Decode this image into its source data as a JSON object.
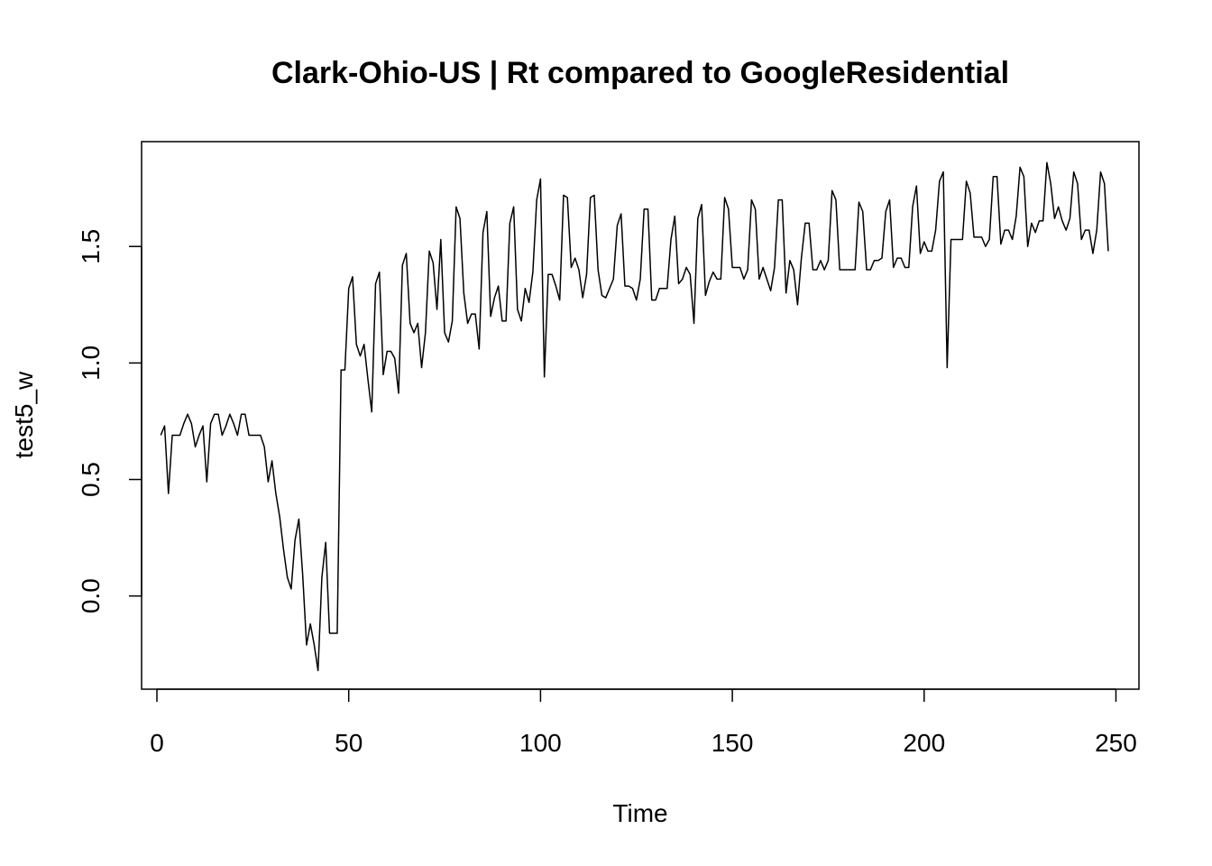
{
  "chart_data": {
    "type": "line",
    "title": "Clark-Ohio-US | Rt compared to GoogleResidential",
    "xlabel": "Time",
    "ylabel": "test5_w",
    "xlim": [
      -4,
      256
    ],
    "ylim": [
      -0.4,
      1.95
    ],
    "xticks": [
      0,
      50,
      100,
      150,
      200,
      250
    ],
    "yticks": [
      0.0,
      0.5,
      1.0,
      1.5
    ],
    "xtick_labels": [
      "0",
      "50",
      "100",
      "150",
      "200",
      "250"
    ],
    "ytick_labels": [
      "0.0",
      "0.5",
      "1.0",
      "1.5"
    ],
    "grid": false,
    "legend": "none",
    "line_color": "#000000",
    "series": [
      {
        "x": [
          1,
          2,
          3,
          4,
          5,
          6,
          7,
          8,
          9,
          10,
          11,
          12,
          13,
          14,
          15,
          16,
          17,
          18,
          19,
          20,
          21,
          22,
          23,
          24,
          25,
          26,
          27,
          28,
          29,
          30,
          31,
          32,
          33,
          34,
          35,
          36,
          37,
          38,
          39,
          40,
          41,
          42,
          43,
          44,
          45,
          46,
          47,
          48,
          49,
          50,
          51,
          52,
          53,
          54,
          55,
          56,
          57,
          58,
          59,
          60,
          61,
          62,
          63,
          64,
          65,
          66,
          67,
          68,
          69,
          70,
          71,
          72,
          73,
          74,
          75,
          76,
          77,
          78,
          79,
          80,
          81,
          82,
          83,
          84,
          85,
          86,
          87,
          88,
          89,
          90,
          91,
          92,
          93,
          94,
          95,
          96,
          97,
          98,
          99,
          100,
          101,
          102,
          103,
          104,
          105,
          106,
          107,
          108,
          109,
          110,
          111,
          112,
          113,
          114,
          115,
          116,
          117,
          118,
          119,
          120,
          121,
          122,
          123,
          124,
          125,
          126,
          127,
          128,
          129,
          130,
          131,
          132,
          133,
          134,
          135,
          136,
          137,
          138,
          139,
          140,
          141,
          142,
          143,
          144,
          145,
          146,
          147,
          148,
          149,
          150,
          151,
          152,
          153,
          154,
          155,
          156,
          157,
          158,
          159,
          160,
          161,
          162,
          163,
          164,
          165,
          166,
          167,
          168,
          169,
          170,
          171,
          172,
          173,
          174,
          175,
          176,
          177,
          178,
          179,
          180,
          181,
          182,
          183,
          184,
          185,
          186,
          187,
          188,
          189,
          190,
          191,
          192,
          193,
          194,
          195,
          196,
          197,
          198,
          199,
          200,
          201,
          202,
          203,
          204,
          205,
          206,
          207,
          208,
          209,
          210,
          211,
          212,
          213,
          214,
          215,
          216,
          217,
          218,
          219,
          220,
          221,
          222,
          223,
          224,
          225,
          226,
          227,
          228,
          229,
          230,
          231,
          232,
          233,
          234,
          235,
          236,
          237,
          238,
          239,
          240,
          241,
          242,
          243,
          244,
          245,
          246,
          247,
          248
        ],
        "y": [
          0.69,
          0.73,
          0.44,
          0.69,
          0.69,
          0.69,
          0.74,
          0.78,
          0.74,
          0.64,
          0.69,
          0.73,
          0.49,
          0.74,
          0.78,
          0.78,
          0.69,
          0.73,
          0.78,
          0.74,
          0.69,
          0.78,
          0.78,
          0.69,
          0.69,
          0.69,
          0.69,
          0.64,
          0.49,
          0.58,
          0.44,
          0.34,
          0.2,
          0.08,
          0.03,
          0.24,
          0.33,
          0.09,
          -0.21,
          -0.12,
          -0.21,
          -0.32,
          0.08,
          0.23,
          -0.16,
          -0.16,
          -0.16,
          0.97,
          0.97,
          1.32,
          1.37,
          1.08,
          1.03,
          1.08,
          0.93,
          0.79,
          1.34,
          1.39,
          0.95,
          1.05,
          1.05,
          1.02,
          0.87,
          1.42,
          1.47,
          1.17,
          1.13,
          1.17,
          0.98,
          1.13,
          1.48,
          1.43,
          1.23,
          1.53,
          1.13,
          1.09,
          1.18,
          1.67,
          1.62,
          1.3,
          1.17,
          1.21,
          1.21,
          1.06,
          1.56,
          1.65,
          1.2,
          1.28,
          1.33,
          1.18,
          1.18,
          1.6,
          1.67,
          1.23,
          1.18,
          1.32,
          1.26,
          1.39,
          1.7,
          1.79,
          0.94,
          1.38,
          1.38,
          1.33,
          1.27,
          1.72,
          1.71,
          1.41,
          1.45,
          1.4,
          1.28,
          1.38,
          1.71,
          1.72,
          1.4,
          1.29,
          1.28,
          1.32,
          1.36,
          1.59,
          1.64,
          1.33,
          1.33,
          1.32,
          1.27,
          1.36,
          1.66,
          1.66,
          1.27,
          1.27,
          1.32,
          1.32,
          1.32,
          1.53,
          1.63,
          1.34,
          1.36,
          1.41,
          1.38,
          1.17,
          1.62,
          1.68,
          1.29,
          1.35,
          1.39,
          1.36,
          1.36,
          1.71,
          1.66,
          1.41,
          1.41,
          1.41,
          1.36,
          1.4,
          1.7,
          1.66,
          1.36,
          1.41,
          1.36,
          1.31,
          1.41,
          1.7,
          1.7,
          1.3,
          1.44,
          1.4,
          1.25,
          1.45,
          1.6,
          1.6,
          1.4,
          1.4,
          1.44,
          1.4,
          1.44,
          1.74,
          1.7,
          1.4,
          1.4,
          1.4,
          1.4,
          1.4,
          1.69,
          1.65,
          1.4,
          1.4,
          1.44,
          1.44,
          1.45,
          1.65,
          1.7,
          1.41,
          1.45,
          1.45,
          1.41,
          1.41,
          1.67,
          1.76,
          1.47,
          1.52,
          1.48,
          1.48,
          1.57,
          1.78,
          1.82,
          0.98,
          1.53,
          1.53,
          1.53,
          1.53,
          1.78,
          1.73,
          1.54,
          1.54,
          1.54,
          1.5,
          1.53,
          1.8,
          1.8,
          1.51,
          1.57,
          1.57,
          1.53,
          1.63,
          1.84,
          1.8,
          1.5,
          1.6,
          1.56,
          1.61,
          1.61,
          1.86,
          1.77,
          1.62,
          1.67,
          1.61,
          1.57,
          1.62,
          1.82,
          1.77,
          1.53,
          1.57,
          1.57,
          1.47,
          1.57,
          1.82,
          1.77,
          1.48
        ]
      }
    ]
  }
}
